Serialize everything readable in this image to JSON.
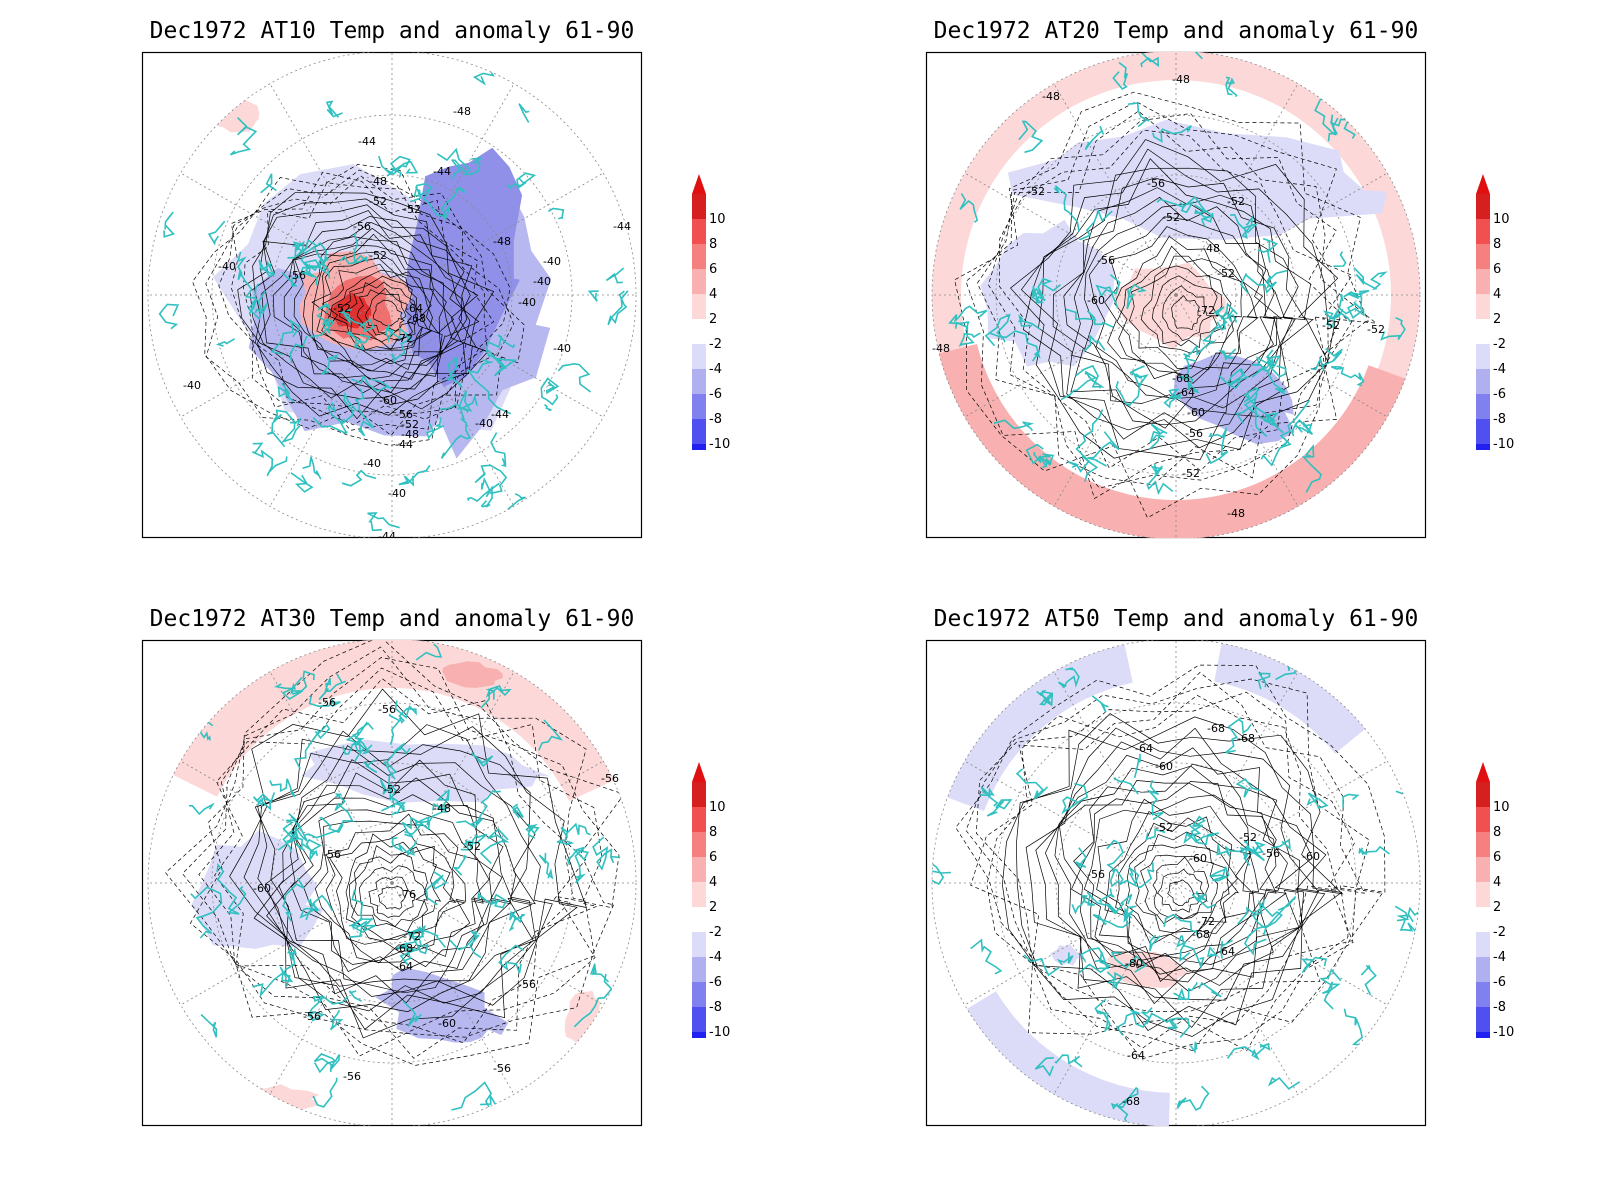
{
  "panels": [
    {
      "id": "at10",
      "title": "Dec1972 AT10 Temp and anomaly 61-90",
      "contour_labels": [
        "-44",
        "-44",
        "-48",
        "-52",
        "-52",
        "-56",
        "-40",
        "-56",
        "-52",
        "-48",
        "-40",
        "-40",
        "-44",
        "-52",
        "-64",
        "-68",
        "-72",
        "-40",
        "-40",
        "-60",
        "-56",
        "-52",
        "-48",
        "-44",
        "-40",
        "-40",
        "-40",
        "-44",
        "-40",
        "-44",
        "-48"
      ],
      "anomaly_regions": [
        {
          "sign": "negative",
          "level": -4
        },
        {
          "sign": "positive",
          "level": 8
        },
        {
          "sign": "negative",
          "level": -6
        },
        {
          "sign": "positive",
          "level": 2
        }
      ]
    },
    {
      "id": "at20",
      "title": "Dec1972 AT20 Temp and anomaly 61-90",
      "contour_labels": [
        "-48",
        "-48",
        "-52",
        "-56",
        "-52",
        "-52",
        "-48",
        "-56",
        "-52",
        "-60",
        "-72",
        "-52",
        "-52",
        "-68",
        "-64",
        "-60",
        "-56",
        "-52",
        "-48",
        "-48"
      ],
      "anomaly_regions": [
        {
          "sign": "positive",
          "level": 2
        },
        {
          "sign": "negative",
          "level": -2
        },
        {
          "sign": "positive",
          "level": 4
        },
        {
          "sign": "negative",
          "level": -4
        }
      ]
    },
    {
      "id": "at30",
      "title": "Dec1972 AT30 Temp and anomaly 61-90",
      "contour_labels": [
        "-56",
        "-56",
        "-56",
        "-52",
        "-48",
        "-56",
        "-52",
        "-60",
        "-76",
        "-72",
        "-68",
        "-64",
        "-56",
        "-56",
        "-60",
        "-56",
        "-56"
      ],
      "anomaly_regions": [
        {
          "sign": "positive",
          "level": 2
        },
        {
          "sign": "negative",
          "level": -2
        },
        {
          "sign": "negative",
          "level": -4
        },
        {
          "sign": "positive",
          "level": 4
        }
      ]
    },
    {
      "id": "at50",
      "title": "Dec1972 AT50 Temp and anomaly 61-90",
      "contour_labels": [
        "-68",
        "-68",
        "-64",
        "-60",
        "-52",
        "-52",
        "-56",
        "-60",
        "-56",
        "-60",
        "-72",
        "-68",
        "-64",
        "-80",
        "-64",
        "-68"
      ],
      "anomaly_regions": [
        {
          "sign": "negative",
          "level": -2
        },
        {
          "sign": "positive",
          "level": 2
        },
        {
          "sign": "negative",
          "level": -4
        }
      ]
    }
  ],
  "colorbar": {
    "labels": [
      "10",
      "8",
      "6",
      "4",
      "2",
      "-2",
      "-4",
      "-6",
      "-8",
      "-10"
    ],
    "colors": [
      "#d62020",
      "#f05050",
      "#f58080",
      "#f8b0b0",
      "#fcd8d8",
      "#ffffff",
      "#dcdcf8",
      "#b0b0f0",
      "#8080ee",
      "#5050f0",
      "#2020f0"
    ],
    "arrow_top": "#e01010",
    "arrow_bottom": "#1010f0"
  },
  "colors": {
    "coastline": "#30c0c0",
    "contour": "#000000",
    "grid": "#888888",
    "positive_light": "#fcd8d8",
    "positive_mid": "#f8b0b0",
    "positive_strong": "#f07070",
    "positive_max": "#e03030",
    "negative_light": "#dcdcf8",
    "negative_mid": "#b8b8f0",
    "negative_strong": "#9090e8"
  }
}
